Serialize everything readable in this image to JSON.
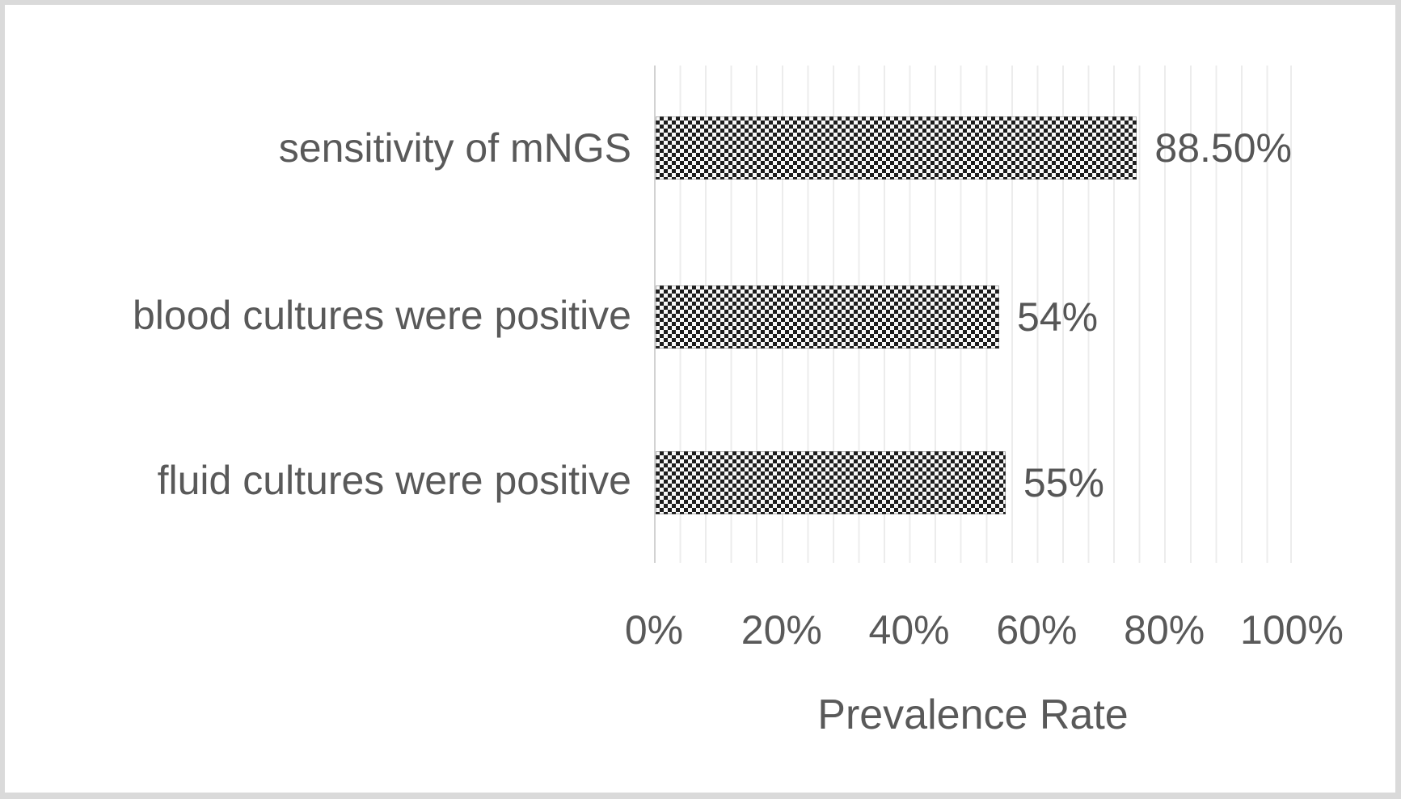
{
  "figure": {
    "frame_color": "#dadada",
    "background_color": "#ffffff"
  },
  "chart_data": {
    "type": "bar",
    "orientation": "horizontal",
    "categories": [
      "sensitivity of mNGS",
      "blood cultures were positive",
      "fluid cultures were positive"
    ],
    "values": [
      88.5,
      54,
      55
    ],
    "value_labels": [
      "88.50%",
      "54%",
      "55%"
    ],
    "xlabel": "Prevalence Rate",
    "ylabel": "",
    "title": "",
    "xlim": [
      0,
      100
    ],
    "x_tick_labels": [
      "0%",
      "20%",
      "40%",
      "60%",
      "80%",
      "100%"
    ],
    "x_major_unit_percent": 20,
    "x_minor_gridline_unit_percent": 4,
    "grid": "vertical minor gridlines on, no horizontal gridlines",
    "legend": "none",
    "bar_fill_style": "black-and-white checkerboard pattern",
    "colors": {
      "label_text": "#595959",
      "value_text": "#565656",
      "gridline": "#ececec",
      "axis_line": "#d2d2d2",
      "pattern_dark": "#1d1d1d",
      "pattern_light": "#f8f8f8"
    }
  }
}
